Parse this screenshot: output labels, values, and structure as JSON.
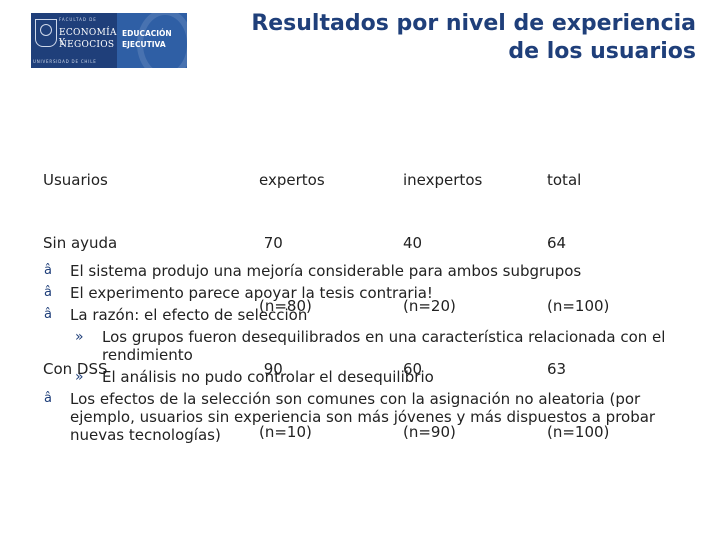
{
  "logo": {
    "small_top": "FACULTAD DE",
    "line1": "ECONOMÍA Y",
    "line2": "NEGOCIOS",
    "bottom": "UNIVERSIDAD DE CHILE",
    "right1": "EDUCACIÓN",
    "right2": "EJECUTIVA"
  },
  "title": {
    "line1": "Resultados por nivel de experiencia",
    "line2": "de los usuarios"
  },
  "table": {
    "col1": [
      "Usuarios",
      "Sin ayuda",
      "",
      "Con DSS",
      ""
    ],
    "col2": [
      "expertos",
      " 70",
      "(n=80)",
      " 90",
      "(n=10)"
    ],
    "col3": [
      "inexpertos",
      "40",
      "(n=20)",
      "60",
      "(n=90)"
    ],
    "col4": [
      "total",
      "64",
      "(n=100)",
      "63",
      "(n=100)"
    ]
  },
  "bullets": {
    "b1": "El sistema produjo una mejoría considerable para ambos subgrupos",
    "b2": "El experimento parece apoyar la tesis contraria!",
    "b3": "La razón: el efecto de selección",
    "s1": "Los grupos fueron desequilibrados en una característica relacionada con el rendimiento",
    "s2": "El análisis no pudo controlar el desequilibrio",
    "b4": "Los efectos de la selección son comunes con la asignación no aleatoria (por ejemplo, usuarios sin experiencia son más jóvenes y más dispuestos a probar nuevas tecnologías)"
  },
  "markers": {
    "bullet": "â",
    "sub": "»"
  }
}
